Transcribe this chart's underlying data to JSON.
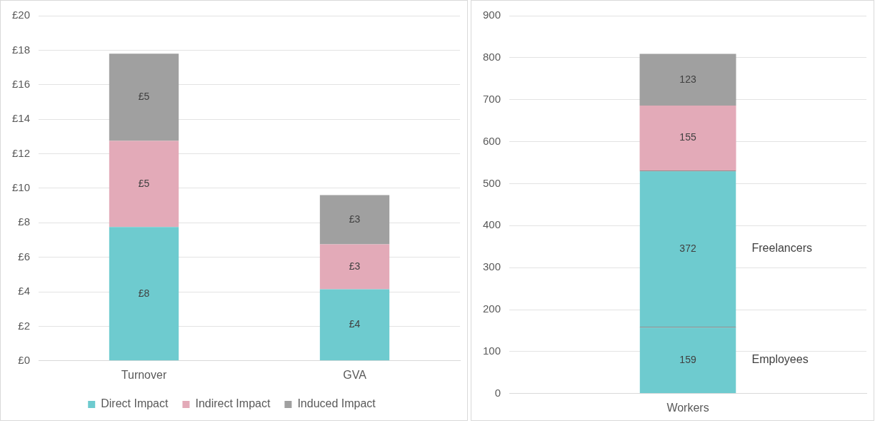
{
  "chart_data": [
    {
      "type": "bar",
      "stacked": true,
      "categories": [
        "Turnover",
        "GVA"
      ],
      "series": [
        {
          "name": "Direct Impact",
          "color": "#6ecbcf",
          "values": [
            7.75,
            4.15
          ],
          "value_labels": [
            "£8",
            "£4"
          ]
        },
        {
          "name": "Indirect Impact",
          "color": "#e3aab8",
          "values": [
            5.0,
            2.6
          ],
          "value_labels": [
            "£5",
            "£3"
          ]
        },
        {
          "name": "Induced Impact",
          "color": "#a0a0a0",
          "values": [
            5.05,
            2.85
          ],
          "value_labels": [
            "£5",
            "£3"
          ]
        }
      ],
      "ylim": [
        0,
        20
      ],
      "yticks": [
        {
          "value": 0,
          "label": "£0"
        },
        {
          "value": 2,
          "label": "£2"
        },
        {
          "value": 4,
          "label": "£4"
        },
        {
          "value": 6,
          "label": "£6"
        },
        {
          "value": 8,
          "label": "£8"
        },
        {
          "value": 10,
          "label": "£10"
        },
        {
          "value": 12,
          "label": "£12"
        },
        {
          "value": 14,
          "label": "£14"
        },
        {
          "value": 16,
          "label": "£16"
        },
        {
          "value": 18,
          "label": "£18"
        },
        {
          "value": 20,
          "label": "£20"
        }
      ],
      "grid": "y",
      "legend": "bottom"
    },
    {
      "type": "bar",
      "stacked": true,
      "categories": [
        "Workers"
      ],
      "series": [
        {
          "name": "Employees",
          "color": "#6ecbcf",
          "values": [
            159
          ]
        },
        {
          "name": "Freelancers",
          "color": "#6ecbcf",
          "values": [
            372
          ]
        },
        {
          "color": "#e3aab8",
          "values": [
            155
          ]
        },
        {
          "color": "#a0a0a0",
          "values": [
            123
          ]
        }
      ],
      "ylim": [
        0,
        900
      ],
      "yticks": [
        0,
        100,
        200,
        300,
        400,
        500,
        600,
        700,
        800,
        900
      ],
      "grid": "y",
      "legend": false,
      "data_labels": true
    }
  ]
}
